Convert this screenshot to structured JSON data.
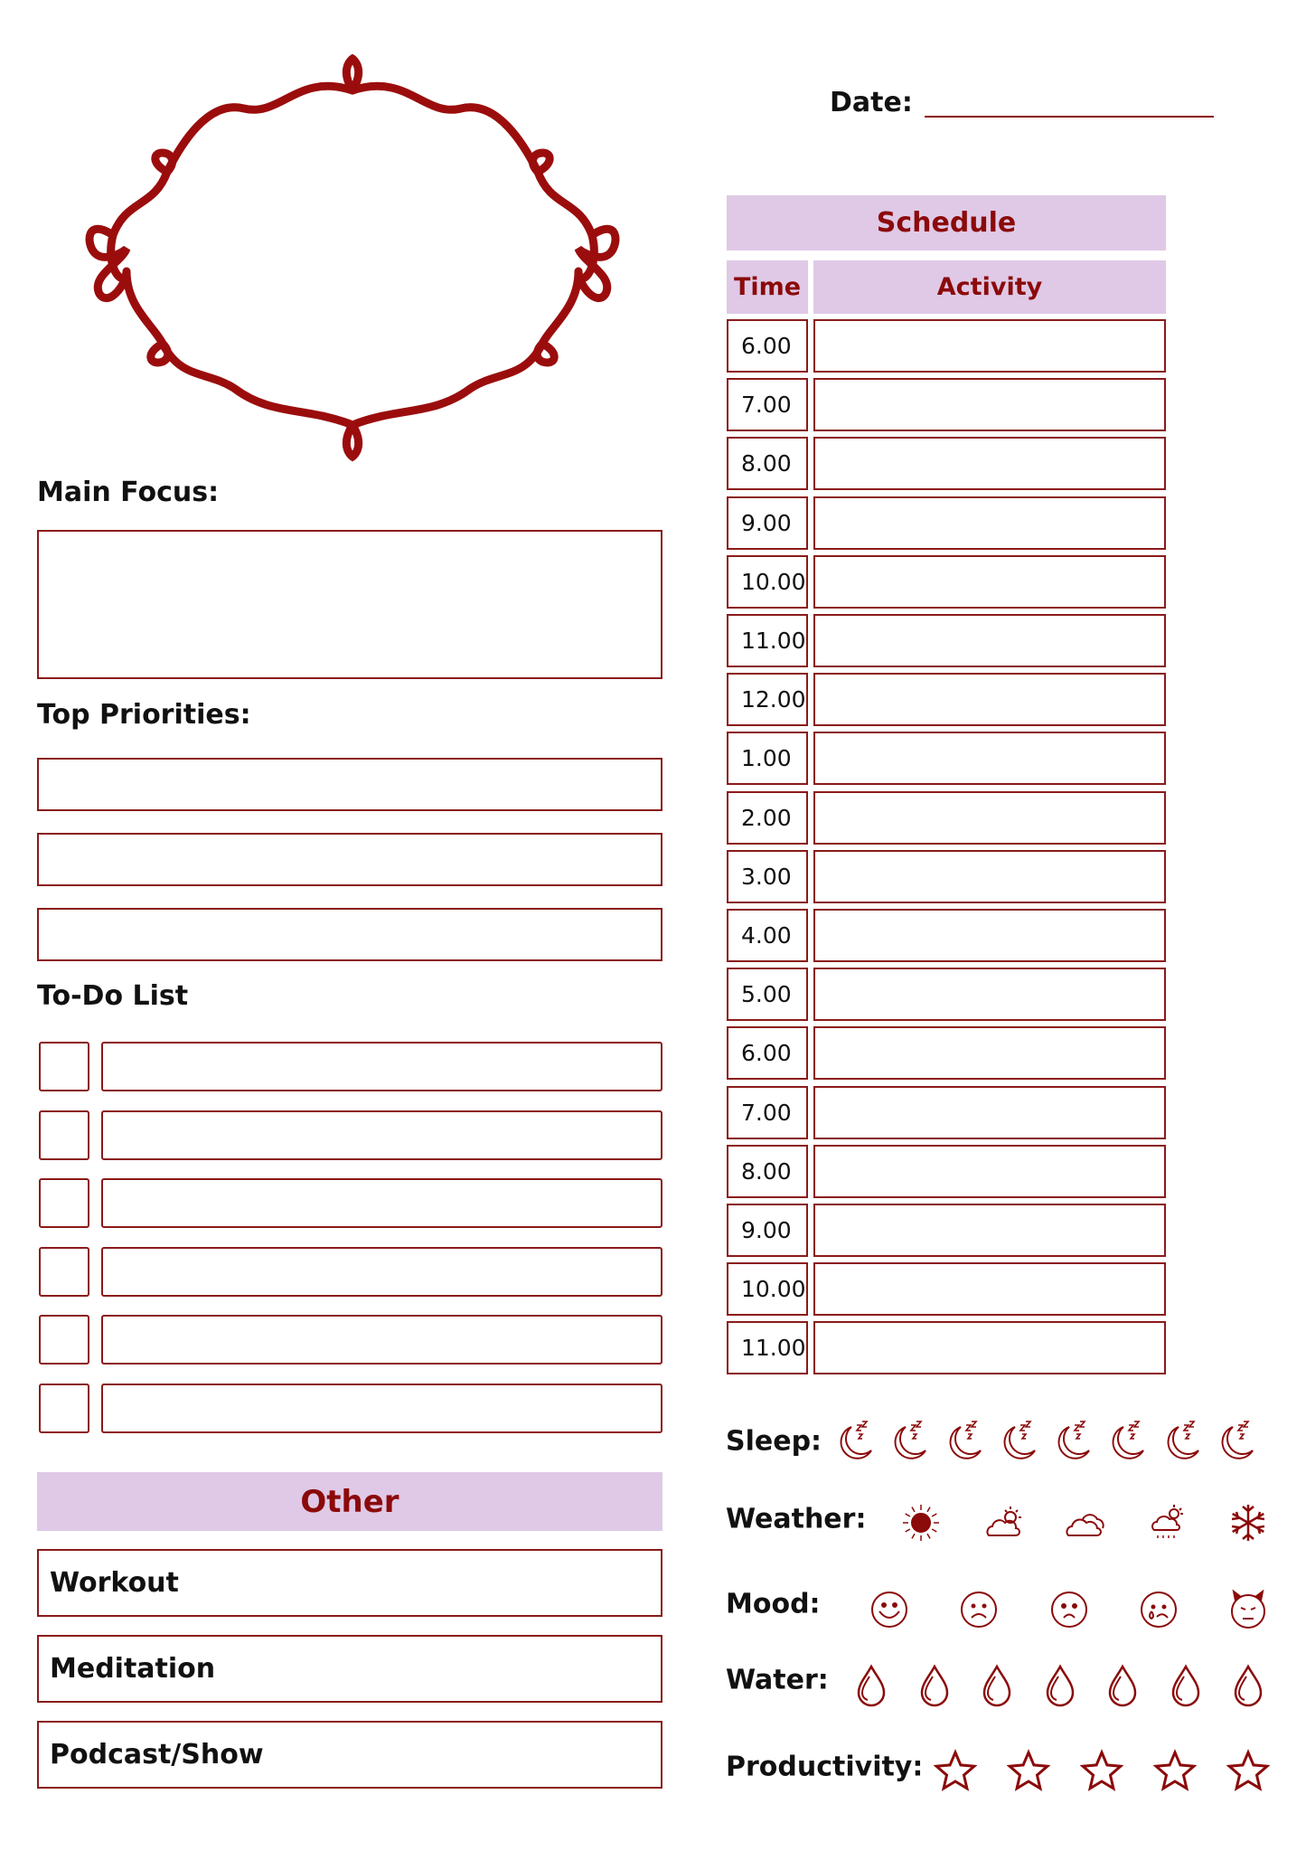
{
  "colors": {
    "accent": "#8b0a0a",
    "header_bg": "#dfc9e6"
  },
  "date": {
    "label": "Date:",
    "value": ""
  },
  "main_focus": {
    "label": "Main Focus:",
    "value": ""
  },
  "top_priorities": {
    "label": "Top Priorities:",
    "items": [
      "",
      "",
      ""
    ]
  },
  "todo": {
    "label": "To-Do List",
    "items": [
      {
        "checked": false,
        "text": ""
      },
      {
        "checked": false,
        "text": ""
      },
      {
        "checked": false,
        "text": ""
      },
      {
        "checked": false,
        "text": ""
      },
      {
        "checked": false,
        "text": ""
      },
      {
        "checked": false,
        "text": ""
      }
    ]
  },
  "other": {
    "title": "Other",
    "items": [
      "Workout",
      "Meditation",
      "Podcast/Show"
    ]
  },
  "schedule": {
    "title": "Schedule",
    "col_time": "Time",
    "col_activity": "Activity",
    "times": [
      "6.00",
      "7.00",
      "8.00",
      "9.00",
      "10.00",
      "11.00",
      "12.00",
      "1.00",
      "2.00",
      "3.00",
      "4.00",
      "5.00",
      "6.00",
      "7.00",
      "8.00",
      "9.00",
      "10.00",
      "11.00"
    ]
  },
  "trackers": {
    "sleep": {
      "label": "Sleep:",
      "icon": "moon-zzz-icon",
      "count": 8
    },
    "weather": {
      "label": "Weather:",
      "icons": [
        "sun-icon",
        "partly-cloudy-icon",
        "cloudy-icon",
        "rain-sun-icon",
        "snowflake-icon"
      ]
    },
    "mood": {
      "label": "Mood:",
      "icons": [
        "happy-face-icon",
        "sad-face-icon",
        "frown-face-icon",
        "crying-face-icon",
        "devil-face-icon"
      ]
    },
    "water": {
      "label": "Water:",
      "icon": "water-drop-icon",
      "count": 7
    },
    "productivity": {
      "label": "Productivity:",
      "icon": "star-icon",
      "count": 5
    }
  }
}
